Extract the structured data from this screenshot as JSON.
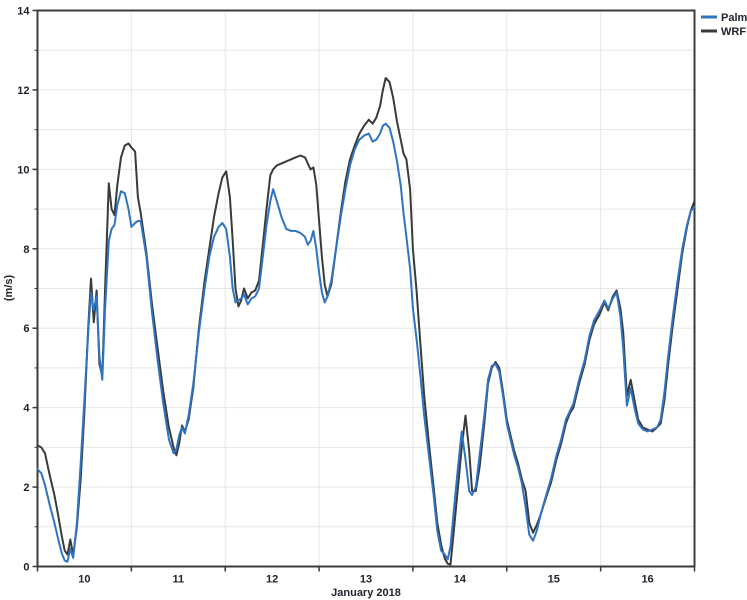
{
  "legend": {
    "entries": [
      {
        "label": "Palm",
        "color": "#2e74c0"
      },
      {
        "label": "WRF",
        "color": "#3a3a3a"
      }
    ]
  },
  "chart_data": {
    "type": "line",
    "title": "",
    "xlabel": "January 2018",
    "ylabel": "(m/s)",
    "xlim": [
      10,
      17
    ],
    "ylim": [
      0,
      14
    ],
    "grid": "on",
    "grid_color": "#e6e6e6",
    "axis_color": "#3b3b3b",
    "legend_position": "outside-top-right",
    "y_major_ticks": [
      0,
      2,
      4,
      6,
      8,
      10,
      12,
      14
    ],
    "y_minor_ticks": [
      1,
      3,
      5,
      7,
      9,
      11,
      13
    ],
    "y_tick_labels": [
      "0",
      "2",
      "4",
      "6",
      "8",
      "10",
      "12",
      "14"
    ],
    "x_tick_positions": [
      10,
      11,
      12,
      13,
      14,
      15,
      16,
      17
    ],
    "x_tick_labels": [
      {
        "label": "10",
        "day": 10.5
      },
      {
        "label": "11",
        "day": 11.5
      },
      {
        "label": "12",
        "day": 12.5
      },
      {
        "label": "13",
        "day": 13.5
      },
      {
        "label": "14",
        "day": 14.5
      },
      {
        "label": "15",
        "day": 15.5
      },
      {
        "label": "16",
        "day": 16.5
      }
    ],
    "x": [
      10,
      10.04,
      10.08,
      10.13,
      10.18,
      10.22,
      10.26,
      10.29,
      10.32,
      10.35,
      10.38,
      10.42,
      10.46,
      10.5,
      10.54,
      10.57,
      10.6,
      10.63,
      10.66,
      10.69,
      10.72,
      10.76,
      10.79,
      10.82,
      10.85,
      10.89,
      10.93,
      10.97,
      11,
      11.04,
      11.07,
      11.1,
      11.16,
      11.22,
      11.28,
      11.34,
      11.4,
      11.45,
      11.48,
      11.51,
      11.54,
      11.57,
      11.61,
      11.66,
      11.72,
      11.78,
      11.83,
      11.88,
      11.93,
      11.97,
      12.01,
      12.05,
      12.08,
      12.11,
      12.14,
      12.17,
      12.2,
      12.24,
      12.28,
      12.32,
      12.36,
      12.4,
      12.44,
      12.48,
      12.51,
      12.55,
      12.6,
      12.65,
      12.7,
      12.75,
      12.8,
      12.85,
      12.88,
      12.91,
      12.94,
      12.97,
      13,
      13.03,
      13.06,
      13.09,
      13.13,
      13.18,
      13.23,
      13.28,
      13.33,
      13.38,
      13.43,
      13.48,
      13.53,
      13.57,
      13.61,
      13.65,
      13.68,
      13.71,
      13.75,
      13.79,
      13.83,
      13.87,
      13.9,
      13.93,
      13.97,
      14,
      14.04,
      14.08,
      14.12,
      14.17,
      14.22,
      14.26,
      14.3,
      14.34,
      14.37,
      14.4,
      14.44,
      14.48,
      14.52,
      14.56,
      14.6,
      14.63,
      14.67,
      14.71,
      14.76,
      14.8,
      14.84,
      14.88,
      14.92,
      14.96,
      15,
      15.04,
      15.08,
      15.12,
      15.16,
      15.2,
      15.24,
      15.28,
      15.32,
      15.36,
      15.42,
      15.47,
      15.53,
      15.58,
      15.63,
      15.67,
      15.71,
      15.77,
      15.83,
      15.88,
      15.93,
      15.99,
      16.04,
      16.08,
      16.13,
      16.17,
      16.21,
      16.24,
      16.28,
      16.32,
      16.36,
      16.4,
      16.45,
      16.5,
      16.55,
      16.6,
      16.64,
      16.68,
      16.72,
      16.77,
      16.82,
      16.87,
      16.92,
      16.96,
      17
    ],
    "series": [
      {
        "name": "Palm",
        "color": "#2e74c0",
        "values": [
          2.45,
          2.35,
          2.05,
          1.55,
          1.1,
          0.7,
          0.32,
          0.15,
          0.12,
          0.45,
          0.22,
          1.1,
          2.6,
          4.2,
          5.9,
          6.9,
          6.45,
          6.8,
          5.3,
          4.7,
          6.5,
          8.2,
          8.5,
          8.6,
          9.1,
          9.45,
          9.4,
          9.0,
          8.55,
          8.65,
          8.7,
          8.7,
          7.8,
          6.4,
          5.2,
          4.1,
          3.2,
          2.85,
          2.95,
          3.3,
          3.5,
          3.35,
          3.8,
          4.6,
          5.9,
          7.0,
          7.8,
          8.3,
          8.55,
          8.65,
          8.5,
          7.8,
          7.0,
          6.65,
          6.7,
          6.75,
          6.85,
          6.6,
          6.75,
          6.8,
          7.0,
          7.8,
          8.6,
          9.2,
          9.5,
          9.2,
          8.8,
          8.5,
          8.45,
          8.45,
          8.4,
          8.3,
          8.1,
          8.2,
          8.45,
          8.0,
          7.4,
          6.9,
          6.65,
          6.8,
          7.2,
          8.0,
          8.8,
          9.5,
          10.1,
          10.5,
          10.75,
          10.85,
          10.9,
          10.7,
          10.75,
          10.9,
          11.1,
          11.15,
          11.05,
          10.7,
          10.2,
          9.6,
          8.9,
          8.3,
          7.5,
          6.5,
          5.7,
          4.8,
          3.8,
          2.8,
          1.8,
          0.9,
          0.4,
          0.3,
          0.18,
          0.5,
          1.5,
          2.5,
          3.4,
          2.7,
          1.9,
          1.8,
          2.0,
          2.8,
          3.8,
          4.7,
          5.05,
          5.1,
          4.9,
          4.3,
          3.6,
          3.2,
          2.8,
          2.5,
          2.1,
          1.5,
          0.8,
          0.65,
          0.9,
          1.3,
          1.8,
          2.2,
          2.8,
          3.2,
          3.7,
          3.9,
          4.1,
          4.7,
          5.2,
          5.8,
          6.2,
          6.45,
          6.7,
          6.5,
          6.75,
          6.9,
          6.3,
          5.5,
          4.05,
          4.5,
          4.0,
          3.6,
          3.45,
          3.4,
          3.45,
          3.5,
          3.7,
          4.4,
          5.3,
          6.3,
          7.2,
          8.0,
          8.6,
          8.95,
          9.05
        ]
      },
      {
        "name": "WRF",
        "color": "#3a3a3a",
        "values": [
          3.05,
          3.0,
          2.85,
          2.3,
          1.8,
          1.3,
          0.75,
          0.4,
          0.3,
          0.68,
          0.28,
          1.0,
          2.2,
          3.9,
          6.0,
          7.25,
          6.15,
          6.95,
          5.1,
          4.8,
          7.0,
          9.65,
          9.0,
          8.85,
          9.6,
          10.3,
          10.6,
          10.65,
          10.55,
          10.45,
          9.3,
          8.9,
          7.9,
          6.6,
          5.5,
          4.4,
          3.5,
          3.0,
          2.8,
          3.1,
          3.55,
          3.4,
          3.7,
          4.5,
          6.0,
          7.2,
          8.0,
          8.8,
          9.4,
          9.8,
          9.95,
          9.3,
          8.2,
          7.0,
          6.55,
          6.7,
          7.0,
          6.75,
          6.9,
          6.95,
          7.2,
          8.1,
          9.0,
          9.85,
          10.0,
          10.1,
          10.15,
          10.2,
          10.25,
          10.3,
          10.35,
          10.3,
          10.15,
          10.0,
          10.05,
          9.6,
          8.7,
          7.8,
          7.1,
          6.8,
          7.1,
          8.0,
          8.9,
          9.7,
          10.25,
          10.6,
          10.9,
          11.1,
          11.25,
          11.15,
          11.3,
          11.6,
          12.0,
          12.3,
          12.2,
          11.8,
          11.2,
          10.75,
          10.4,
          10.25,
          9.5,
          8.0,
          6.9,
          5.6,
          4.3,
          3.1,
          2.0,
          1.1,
          0.55,
          0.2,
          0.07,
          0.05,
          1.0,
          2.0,
          3.0,
          3.8,
          2.9,
          1.9,
          1.9,
          2.5,
          3.6,
          4.6,
          5.0,
          5.15,
          5.0,
          4.4,
          3.7,
          3.3,
          2.9,
          2.6,
          2.2,
          1.9,
          1.1,
          0.85,
          1.05,
          1.3,
          1.75,
          2.1,
          2.7,
          3.1,
          3.6,
          3.85,
          4.0,
          4.6,
          5.1,
          5.7,
          6.1,
          6.35,
          6.65,
          6.45,
          6.8,
          6.95,
          6.5,
          5.9,
          4.3,
          4.7,
          4.2,
          3.7,
          3.5,
          3.45,
          3.4,
          3.5,
          3.6,
          4.2,
          5.1,
          6.1,
          7.0,
          7.9,
          8.55,
          8.95,
          9.2
        ]
      }
    ]
  }
}
